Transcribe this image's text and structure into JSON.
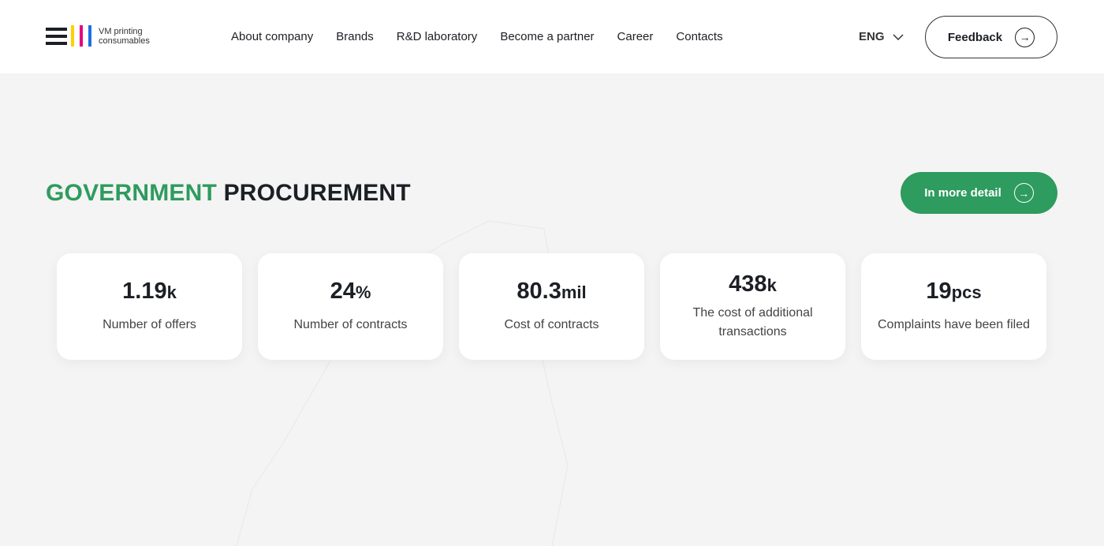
{
  "logo": {
    "text_line1": "VM printing",
    "text_line2": "consumables",
    "colors": [
      "#ffd000",
      "#e6007e",
      "#1e6ee6"
    ]
  },
  "nav": [
    "About company",
    "Brands",
    "R&D laboratory",
    "Become a partner",
    "Career",
    "Contacts"
  ],
  "language": "ENG",
  "feedback_label": "Feedback",
  "section": {
    "title_accent": "GOVERNMENT",
    "title_rest": "PROCUREMENT",
    "more_label": "In more detail",
    "accent_color": "#2e9b5f"
  },
  "stats": [
    {
      "value": "1.19",
      "unit": "k",
      "label": "Number of offers"
    },
    {
      "value": "24",
      "unit": "%",
      "label": "Number of contracts"
    },
    {
      "value": "80.3",
      "unit": "mil",
      "label": "Cost of contracts"
    },
    {
      "value": "438",
      "unit": "k",
      "label": "The cost of additional transactions"
    },
    {
      "value": "19",
      "unit": "pcs",
      "label": "Complaints have been filed"
    }
  ]
}
